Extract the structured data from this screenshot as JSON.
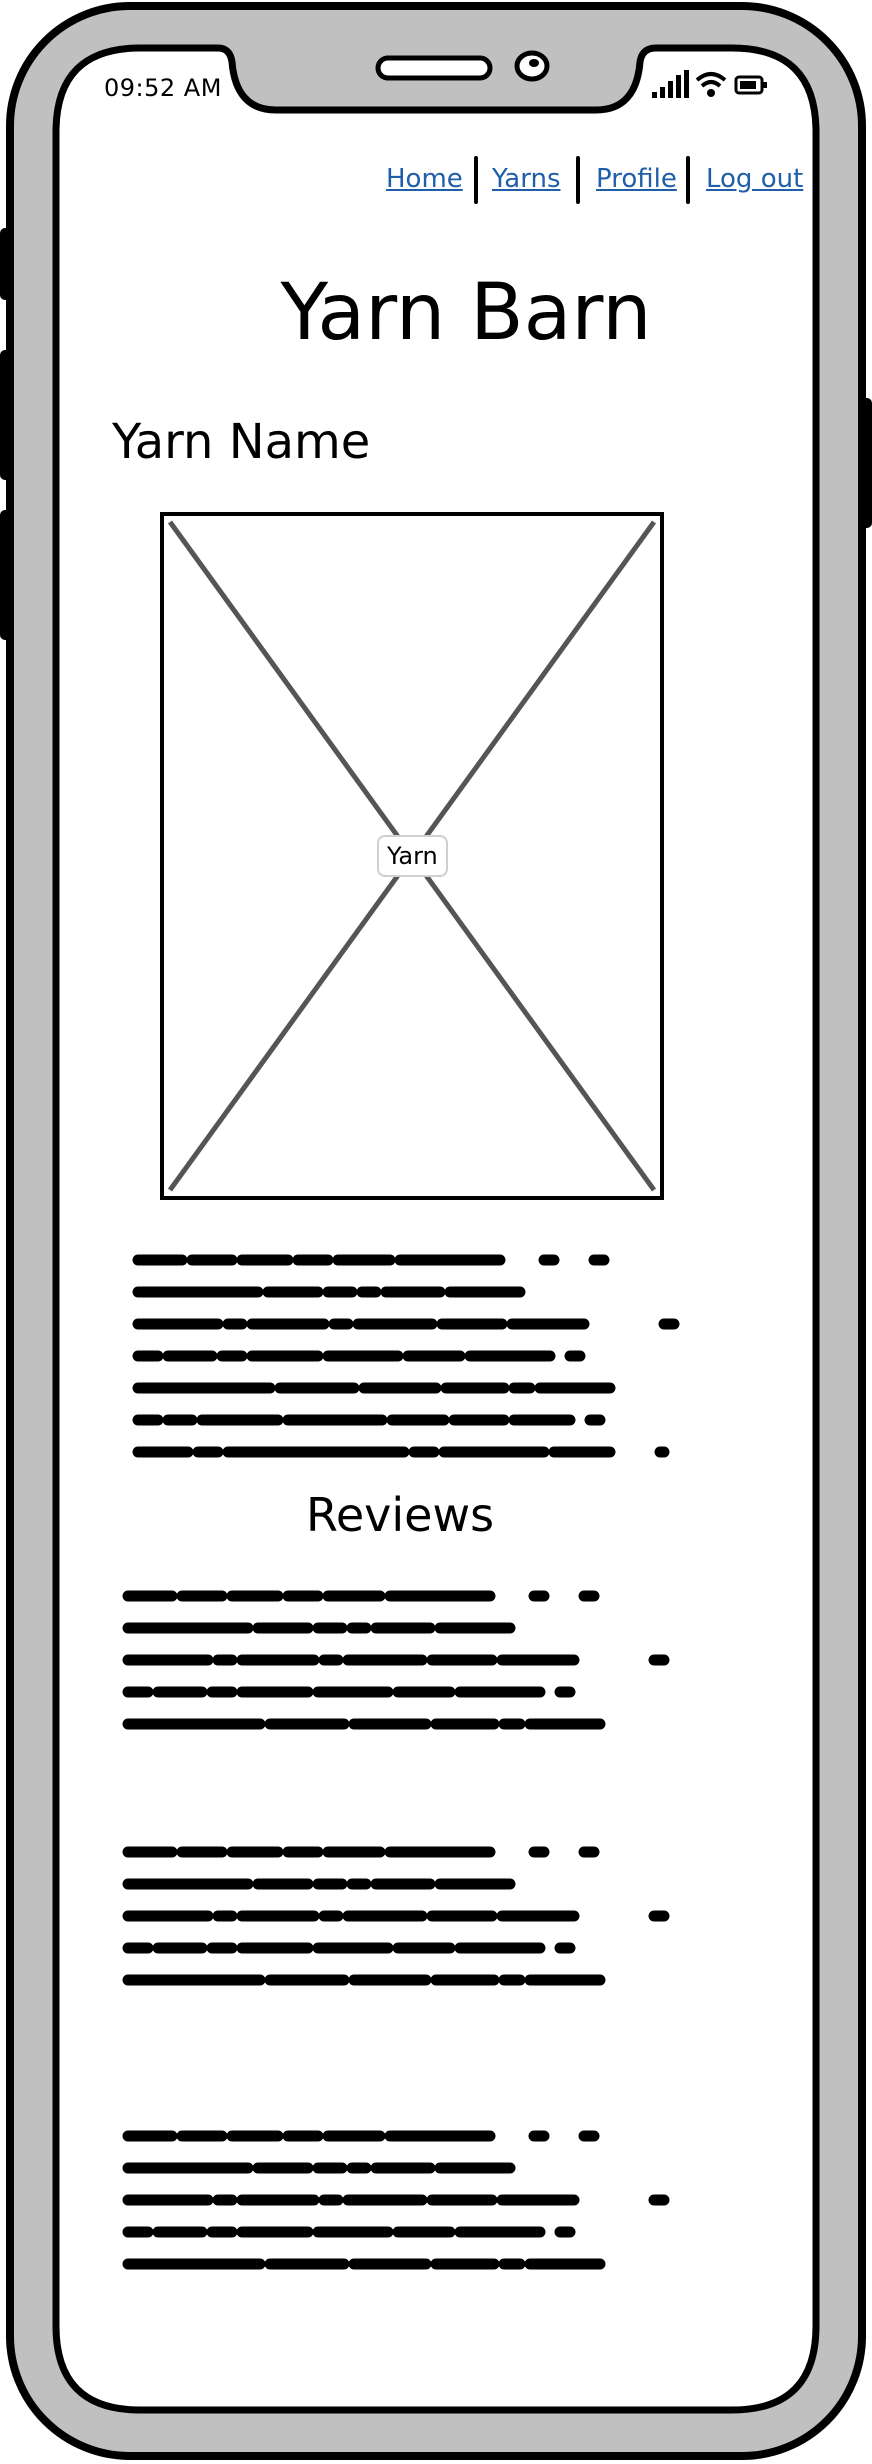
{
  "status_bar": {
    "time": "09:52 AM",
    "icons": [
      "signal-icon",
      "wifi-icon",
      "battery-icon"
    ]
  },
  "nav": {
    "items": [
      {
        "label": "Home"
      },
      {
        "label": "Yarns"
      },
      {
        "label": "Profile"
      },
      {
        "label": "Log out"
      }
    ]
  },
  "page": {
    "title": "Yarn Barn",
    "yarn_name": "Yarn Name",
    "image_label": "Yarn",
    "reviews_heading": "Reviews"
  },
  "colors": {
    "link": "#1f5faa",
    "frame": "#c0c0c0",
    "placeholder_stroke": "#555555"
  }
}
